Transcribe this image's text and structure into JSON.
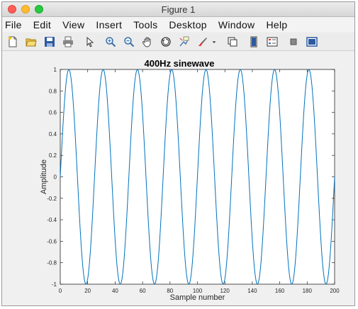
{
  "window": {
    "title": "Figure 1"
  },
  "menu": [
    "File",
    "Edit",
    "View",
    "Insert",
    "Tools",
    "Desktop",
    "Window",
    "Help"
  ],
  "toolbar": {
    "icons": [
      "new-figure-icon",
      "open-file-icon",
      "save-icon",
      "print-icon",
      "pointer-icon",
      "zoom-in-icon",
      "zoom-out-icon",
      "pan-icon",
      "rotate-3d-icon",
      "data-cursor-icon",
      "brush-icon",
      "dropdown-arrow-icon",
      "link-plot-icon",
      "insert-colorbar-icon",
      "insert-legend-icon",
      "hide-plot-tools-icon",
      "show-plot-tools-icon"
    ]
  },
  "colors": {
    "line": "#0072bd",
    "axes_bg": "#ffffff",
    "figure_bg": "#f0f0f0"
  },
  "chart_data": {
    "type": "line",
    "title": "400Hz sinewave",
    "xlabel": "Sample number",
    "ylabel": "Amplitude",
    "xlim": [
      0,
      200
    ],
    "ylim": [
      -1,
      1
    ],
    "xticks": [
      "0",
      "20",
      "40",
      "60",
      "80",
      "100",
      "120",
      "140",
      "160",
      "180",
      "200"
    ],
    "yticks": [
      "-1",
      "-0.8",
      "-0.6",
      "-0.4",
      "-0.2",
      "0",
      "0.2",
      "0.4",
      "0.6",
      "0.8",
      "1"
    ],
    "grid": false,
    "series": [
      {
        "function": "sin(2*pi*400*n/10000)",
        "period_samples": 25,
        "n_start": 0,
        "n_end": 200,
        "step": 0.5
      }
    ]
  }
}
